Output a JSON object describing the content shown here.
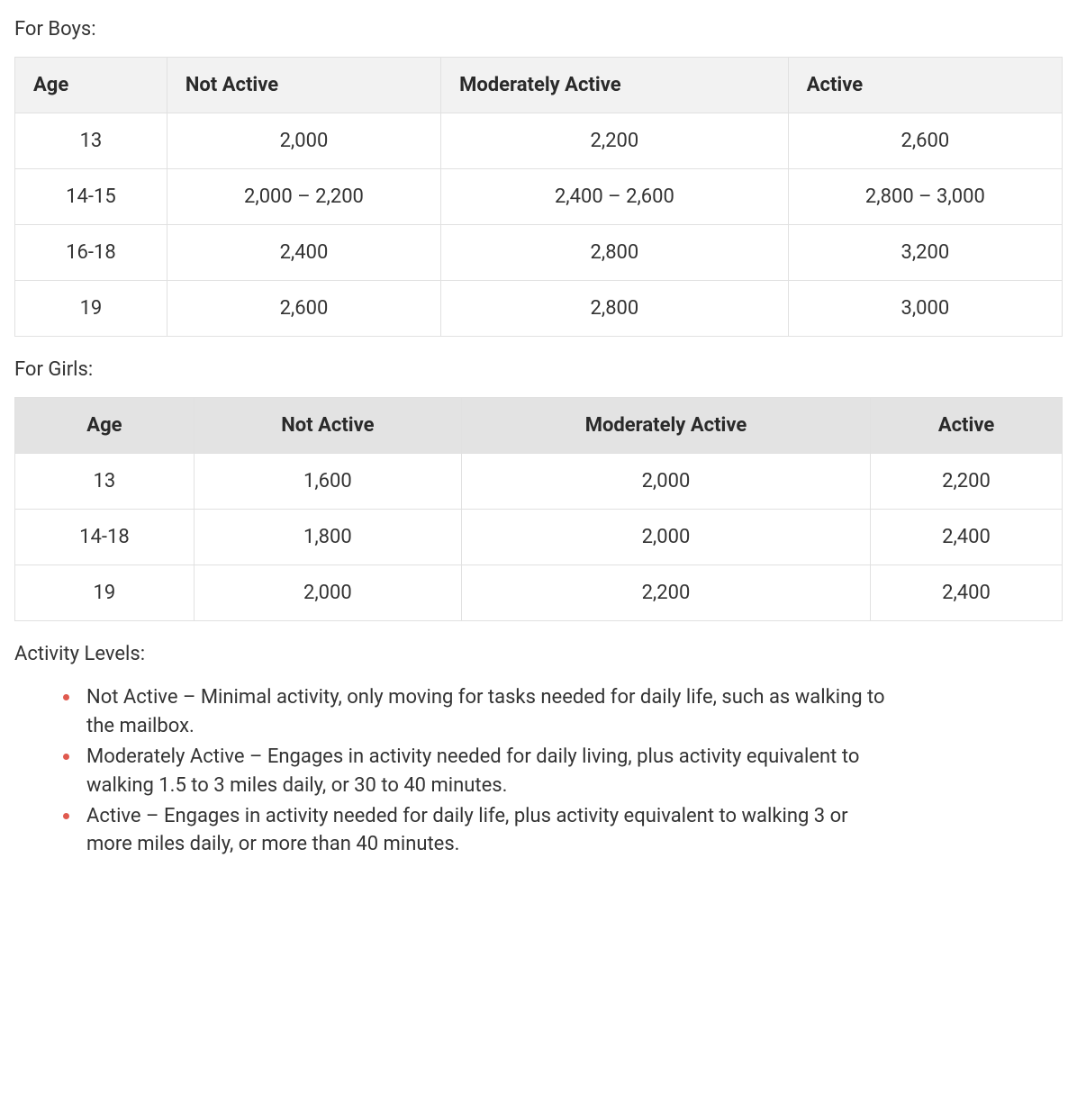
{
  "sections": {
    "boys_label": "For Boys:",
    "girls_label": "For Girls:",
    "activity_label": "Activity Levels:"
  },
  "boys_table": {
    "type": "table",
    "header_bg": "#f2f2f2",
    "header_align": "left",
    "body_align": "center",
    "border_color": "#e1e1e1",
    "columns": [
      "Age",
      "Not Active",
      "Moderately Active",
      "Active"
    ],
    "rows": [
      [
        "13",
        "2,000",
        "2,200",
        "2,600"
      ],
      [
        "14-15",
        "2,000 – 2,200",
        "2,400 – 2,600",
        "2,800 – 3,000"
      ],
      [
        "16-18",
        "2,400",
        "2,800",
        "3,200"
      ],
      [
        "19",
        "2,600",
        "2,800",
        "3,000"
      ]
    ]
  },
  "girls_table": {
    "type": "table",
    "header_bg": "#e3e3e3",
    "header_align": "center",
    "body_align": "center",
    "border_color": "#e1e1e1",
    "columns": [
      "Age",
      "Not Active",
      "Moderately Active",
      "Active"
    ],
    "rows": [
      [
        "13",
        "1,600",
        "2,000",
        "2,200"
      ],
      [
        "14-18",
        "1,800",
        "2,000",
        "2,400"
      ],
      [
        "19",
        "2,000",
        "2,200",
        "2,400"
      ]
    ]
  },
  "activity_levels": {
    "bullet_color": "#e05a4f",
    "items": [
      "Not Active – Minimal activity, only moving for tasks needed for daily life, such as walking to the mailbox.",
      "Moderately Active – Engages in activity needed for daily living, plus activity equivalent to walking 1.5 to 3 miles daily, or 30 to 40 minutes.",
      "Active – Engages in activity needed for daily life, plus activity equivalent to walking 3 or more miles daily, or more than 40 minutes."
    ]
  },
  "typography": {
    "base_fontsize": 22,
    "header_fontweight": 700,
    "body_color": "#333333",
    "header_color": "#2a2a2a"
  }
}
